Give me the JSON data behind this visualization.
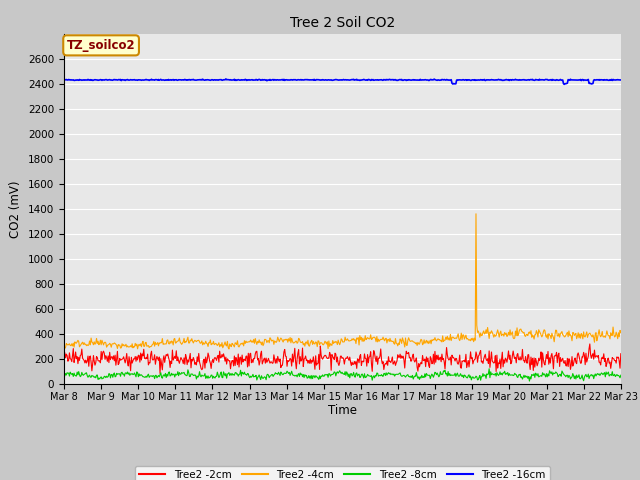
{
  "title": "Tree 2 Soil CO2",
  "ylabel": "CO2 (mV)",
  "xlabel": "Time",
  "background_color": "#c8c8c8",
  "plot_bg_color": "#e8e8e8",
  "ylim": [
    0,
    2800
  ],
  "yticks": [
    0,
    200,
    400,
    600,
    800,
    1000,
    1200,
    1400,
    1600,
    1800,
    2000,
    2200,
    2400,
    2600
  ],
  "legend_label": "TZ_soilco2",
  "series": {
    "tree2_2cm": {
      "label": "Tree2 -2cm",
      "color": "#ff0000"
    },
    "tree2_4cm": {
      "label": "Tree2 -4cm",
      "color": "#ffa500"
    },
    "tree2_8cm": {
      "label": "Tree2 -8cm",
      "color": "#00cc00"
    },
    "tree2_16cm": {
      "label": "Tree2 -16cm",
      "color": "#0000ff"
    }
  },
  "n_days": 15,
  "start_day": 8,
  "points_per_day": 48,
  "seed": 42
}
